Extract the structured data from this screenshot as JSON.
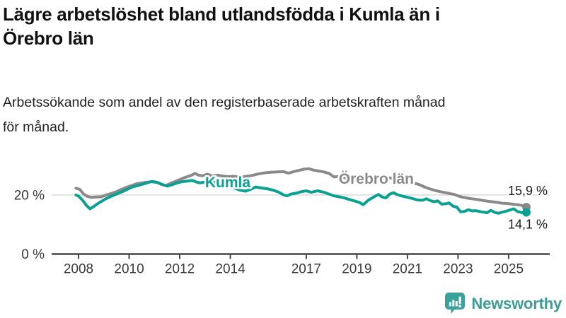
{
  "header": {
    "title_lines": [
      "Lägre arbetslöshet bland utlandsfödda i Kumla än i",
      "Örebro län"
    ],
    "subtitle_lines": [
      "Arbetssökande som andel av den registerbaserade arbetskraften månad",
      "för månad."
    ]
  },
  "chart_data": {
    "type": "line",
    "unit": "%",
    "title": "Lägre arbetslöshet bland utlandsfödda i Kumla än i Örebro län",
    "subtitle": "Arbetssökande som andel av den registerbaserade arbetskraften månad för månad.",
    "xlabel": "",
    "ylabel": "",
    "xlim": [
      2007.85,
      2026.6
    ],
    "ylim": [
      0,
      30
    ],
    "grid": "horizontal-20-only",
    "legend_position": "inline-line-labels",
    "x_ticks": [
      2008,
      2010,
      2012,
      2014,
      2017,
      2019,
      2021,
      2023,
      2025
    ],
    "x_tick_labels": [
      "2008",
      "2010",
      "2012",
      "2014",
      "2017",
      "2019",
      "2021",
      "2023",
      "2025"
    ],
    "y_ticks": [
      {
        "value": 20,
        "label": "20 %"
      },
      {
        "value": 0,
        "label": "0 %"
      }
    ],
    "series": [
      {
        "id": "orebro-lan",
        "name": "Örebro län",
        "color": "#8a8a8a",
        "end_label": "15,9 %",
        "end_value": 15.9,
        "end_label_side": "above",
        "label_at": [
          2019.77,
          23.8
        ],
        "points": [
          [
            2007.9,
            22.3
          ],
          [
            2008.05,
            21.9
          ],
          [
            2008.2,
            20.3
          ],
          [
            2008.35,
            19.5
          ],
          [
            2008.5,
            19.2
          ],
          [
            2008.7,
            19.3
          ],
          [
            2008.9,
            19.4
          ],
          [
            2009.1,
            20.0
          ],
          [
            2009.3,
            20.5
          ],
          [
            2009.5,
            21.1
          ],
          [
            2009.7,
            21.9
          ],
          [
            2009.9,
            22.6
          ],
          [
            2010.1,
            23.2
          ],
          [
            2010.3,
            23.8
          ],
          [
            2010.5,
            24.1
          ],
          [
            2010.7,
            24.3
          ],
          [
            2010.9,
            24.5
          ],
          [
            2011.1,
            24.2
          ],
          [
            2011.3,
            23.5
          ],
          [
            2011.45,
            23.2
          ],
          [
            2011.6,
            23.8
          ],
          [
            2011.8,
            24.5
          ],
          [
            2012.0,
            25.2
          ],
          [
            2012.2,
            25.9
          ],
          [
            2012.45,
            26.6
          ],
          [
            2012.6,
            27.3
          ],
          [
            2012.75,
            26.7
          ],
          [
            2012.9,
            26.5
          ],
          [
            2013.1,
            27.0
          ],
          [
            2013.3,
            26.4
          ],
          [
            2013.5,
            26.7
          ],
          [
            2013.7,
            26.4
          ],
          [
            2013.9,
            26.2
          ],
          [
            2014.1,
            26.3
          ],
          [
            2014.35,
            26.1
          ],
          [
            2014.6,
            26.3
          ],
          [
            2014.85,
            26.6
          ],
          [
            2015.1,
            27.1
          ],
          [
            2015.35,
            27.5
          ],
          [
            2015.6,
            27.7
          ],
          [
            2015.85,
            27.8
          ],
          [
            2016.1,
            27.9
          ],
          [
            2016.3,
            27.4
          ],
          [
            2016.5,
            27.9
          ],
          [
            2016.7,
            28.3
          ],
          [
            2016.9,
            28.7
          ],
          [
            2017.1,
            28.9
          ],
          [
            2017.3,
            28.4
          ],
          [
            2017.5,
            28.1
          ],
          [
            2017.7,
            27.8
          ],
          [
            2017.9,
            27.3
          ],
          [
            2018.1,
            26.1
          ],
          [
            2018.3,
            26.3
          ],
          [
            2018.6,
            25.7
          ],
          [
            2018.9,
            25.3
          ],
          [
            2019.2,
            24.9
          ],
          [
            2019.5,
            24.7
          ],
          [
            2019.8,
            24.9
          ],
          [
            2020.1,
            25.6
          ],
          [
            2020.3,
            25.8
          ],
          [
            2020.6,
            25.2
          ],
          [
            2020.9,
            24.6
          ],
          [
            2021.15,
            24.1
          ],
          [
            2021.4,
            23.7
          ],
          [
            2021.55,
            23.2
          ],
          [
            2021.7,
            22.6
          ],
          [
            2021.9,
            22.0
          ],
          [
            2022.1,
            21.5
          ],
          [
            2022.3,
            21.1
          ],
          [
            2022.5,
            20.8
          ],
          [
            2022.7,
            20.4
          ],
          [
            2022.85,
            20.2
          ],
          [
            2023.0,
            19.7
          ],
          [
            2023.15,
            19.3
          ],
          [
            2023.35,
            19.0
          ],
          [
            2023.55,
            18.7
          ],
          [
            2023.75,
            18.5
          ],
          [
            2023.95,
            18.2
          ],
          [
            2024.15,
            17.9
          ],
          [
            2024.35,
            17.7
          ],
          [
            2024.55,
            17.5
          ],
          [
            2024.75,
            17.2
          ],
          [
            2024.95,
            17.1
          ],
          [
            2025.15,
            16.9
          ],
          [
            2025.35,
            16.7
          ],
          [
            2025.5,
            16.5
          ],
          [
            2025.6,
            16.3
          ],
          [
            2025.7,
            15.9
          ]
        ]
      },
      {
        "id": "kumla",
        "name": "Kumla",
        "color": "#0ba192",
        "end_label": "14,1 %",
        "end_value": 14.1,
        "end_label_side": "below",
        "label_at": [
          2013.9,
          22.6
        ],
        "points": [
          [
            2007.9,
            20.0
          ],
          [
            2008.0,
            19.6
          ],
          [
            2008.15,
            18.3
          ],
          [
            2008.3,
            16.6
          ],
          [
            2008.45,
            15.3
          ],
          [
            2008.6,
            16.1
          ],
          [
            2008.75,
            17.0
          ],
          [
            2008.9,
            17.8
          ],
          [
            2009.1,
            18.8
          ],
          [
            2009.3,
            19.6
          ],
          [
            2009.5,
            20.3
          ],
          [
            2009.7,
            21.0
          ],
          [
            2009.9,
            21.8
          ],
          [
            2010.1,
            22.6
          ],
          [
            2010.3,
            23.1
          ],
          [
            2010.5,
            23.6
          ],
          [
            2010.7,
            24.1
          ],
          [
            2010.9,
            24.6
          ],
          [
            2011.1,
            24.3
          ],
          [
            2011.3,
            23.6
          ],
          [
            2011.5,
            23.0
          ],
          [
            2011.7,
            23.5
          ],
          [
            2011.9,
            24.1
          ],
          [
            2012.1,
            24.5
          ],
          [
            2012.3,
            24.7
          ],
          [
            2012.5,
            24.9
          ],
          [
            2012.65,
            24.4
          ],
          [
            2012.8,
            24.1
          ],
          [
            2013.0,
            24.4
          ],
          [
            2013.2,
            24.6
          ],
          [
            2013.4,
            24.2
          ],
          [
            2013.6,
            23.8
          ],
          [
            2013.8,
            23.3
          ],
          [
            2014.0,
            22.8
          ],
          [
            2014.2,
            22.2
          ],
          [
            2014.4,
            21.6
          ],
          [
            2014.6,
            21.3
          ],
          [
            2014.8,
            21.9
          ],
          [
            2015.0,
            22.7
          ],
          [
            2015.2,
            22.4
          ],
          [
            2015.45,
            22.1
          ],
          [
            2015.7,
            21.6
          ],
          [
            2015.9,
            21.0
          ],
          [
            2016.1,
            20.0
          ],
          [
            2016.25,
            19.7
          ],
          [
            2016.4,
            20.3
          ],
          [
            2016.6,
            20.6
          ],
          [
            2016.8,
            21.1
          ],
          [
            2017.0,
            21.4
          ],
          [
            2017.2,
            20.9
          ],
          [
            2017.45,
            21.4
          ],
          [
            2017.7,
            20.9
          ],
          [
            2017.9,
            20.3
          ],
          [
            2018.1,
            19.7
          ],
          [
            2018.3,
            19.4
          ],
          [
            2018.5,
            19.0
          ],
          [
            2018.7,
            18.5
          ],
          [
            2018.9,
            18.0
          ],
          [
            2019.1,
            17.5
          ],
          [
            2019.25,
            16.7
          ],
          [
            2019.45,
            18.2
          ],
          [
            2019.65,
            19.2
          ],
          [
            2019.85,
            20.2
          ],
          [
            2020.0,
            19.3
          ],
          [
            2020.15,
            19.0
          ],
          [
            2020.3,
            20.3
          ],
          [
            2020.45,
            20.8
          ],
          [
            2020.6,
            20.1
          ],
          [
            2020.8,
            19.6
          ],
          [
            2021.0,
            19.2
          ],
          [
            2021.2,
            18.8
          ],
          [
            2021.4,
            18.3
          ],
          [
            2021.6,
            18.2
          ],
          [
            2021.75,
            18.7
          ],
          [
            2021.9,
            18.1
          ],
          [
            2022.05,
            17.7
          ],
          [
            2022.2,
            18.0
          ],
          [
            2022.35,
            16.9
          ],
          [
            2022.5,
            17.0
          ],
          [
            2022.65,
            17.3
          ],
          [
            2022.8,
            16.2
          ],
          [
            2022.95,
            15.9
          ],
          [
            2023.1,
            14.3
          ],
          [
            2023.25,
            14.4
          ],
          [
            2023.4,
            15.0
          ],
          [
            2023.55,
            14.6
          ],
          [
            2023.7,
            14.7
          ],
          [
            2023.85,
            14.4
          ],
          [
            2024.0,
            14.2
          ],
          [
            2024.15,
            14.0
          ],
          [
            2024.3,
            14.8
          ],
          [
            2024.45,
            14.1
          ],
          [
            2024.6,
            13.8
          ],
          [
            2024.75,
            14.2
          ],
          [
            2024.9,
            14.5
          ],
          [
            2025.05,
            14.9
          ],
          [
            2025.2,
            15.3
          ],
          [
            2025.35,
            14.4
          ],
          [
            2025.5,
            14.1
          ],
          [
            2025.6,
            13.8
          ],
          [
            2025.7,
            14.1
          ]
        ]
      }
    ]
  },
  "footer": {
    "brand": "Newsworthy",
    "icon": "newsworthy-bubble-chart-icon",
    "brand_color": "#3c9d97"
  },
  "colors": {
    "accent_teal": "#0ba192",
    "series_gray": "#8a8a8a",
    "grid": "#d9d9d9",
    "axis": "#454545",
    "title_text": "#111111"
  }
}
